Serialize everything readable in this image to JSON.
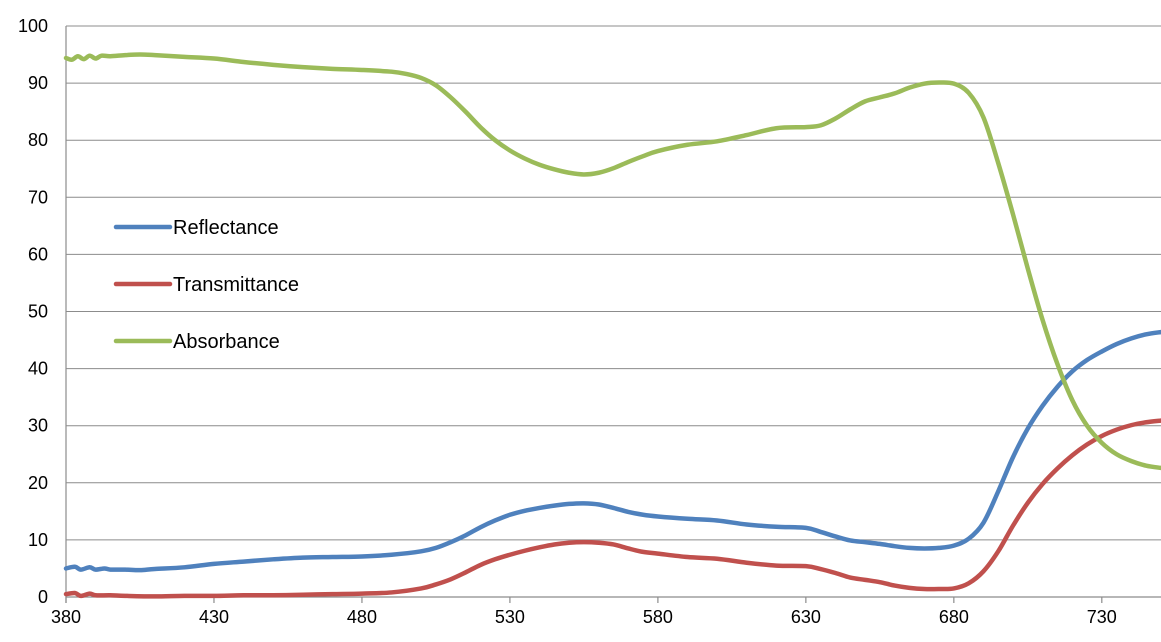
{
  "chart_data": {
    "type": "line",
    "title": "",
    "xlabel": "",
    "ylabel": "",
    "xlim": [
      380,
      750
    ],
    "ylim": [
      0,
      100
    ],
    "x_ticks": [
      380,
      430,
      480,
      530,
      580,
      630,
      680,
      730
    ],
    "y_ticks": [
      0,
      10,
      20,
      30,
      40,
      50,
      60,
      70,
      80,
      90,
      100
    ],
    "grid": true,
    "legend_position": "left",
    "series": [
      {
        "name": "Reflectance",
        "color": "#4f81bd",
        "x": [
          380,
          383,
          385,
          388,
          390,
          393,
          395,
          400,
          405,
          410,
          420,
          430,
          440,
          450,
          460,
          470,
          480,
          490,
          500,
          505,
          510,
          515,
          520,
          525,
          530,
          535,
          540,
          545,
          550,
          555,
          560,
          565,
          570,
          575,
          580,
          590,
          600,
          610,
          620,
          630,
          635,
          640,
          645,
          650,
          655,
          660,
          665,
          670,
          675,
          680,
          685,
          690,
          695,
          700,
          705,
          710,
          715,
          720,
          725,
          730,
          735,
          740,
          745,
          750
        ],
        "y": [
          5.0,
          5.3,
          4.8,
          5.2,
          4.8,
          5.0,
          4.8,
          4.8,
          4.7,
          4.9,
          5.2,
          5.8,
          6.2,
          6.6,
          6.9,
          7.0,
          7.1,
          7.4,
          8.0,
          8.6,
          9.6,
          10.8,
          12.2,
          13.4,
          14.4,
          15.1,
          15.6,
          16.0,
          16.3,
          16.4,
          16.2,
          15.6,
          14.9,
          14.4,
          14.1,
          13.7,
          13.4,
          12.7,
          12.3,
          12.1,
          11.4,
          10.6,
          9.9,
          9.6,
          9.3,
          8.9,
          8.6,
          8.5,
          8.6,
          9.0,
          10.2,
          13.0,
          18.5,
          24.5,
          29.5,
          33.5,
          36.8,
          39.5,
          41.5,
          43.0,
          44.3,
          45.3,
          46.0,
          46.4
        ]
      },
      {
        "name": "Transmittance",
        "color": "#c0504d",
        "x": [
          380,
          383,
          385,
          388,
          390,
          395,
          400,
          410,
          420,
          430,
          440,
          450,
          460,
          470,
          480,
          490,
          500,
          505,
          510,
          515,
          520,
          525,
          530,
          535,
          540,
          545,
          550,
          555,
          560,
          565,
          570,
          575,
          580,
          590,
          600,
          610,
          620,
          630,
          635,
          640,
          645,
          650,
          655,
          660,
          665,
          670,
          675,
          680,
          685,
          690,
          695,
          700,
          705,
          710,
          715,
          720,
          725,
          730,
          735,
          740,
          745,
          750
        ],
        "y": [
          0.5,
          0.7,
          0.2,
          0.6,
          0.3,
          0.3,
          0.2,
          0.1,
          0.2,
          0.2,
          0.3,
          0.3,
          0.4,
          0.5,
          0.6,
          0.8,
          1.5,
          2.2,
          3.1,
          4.3,
          5.6,
          6.6,
          7.4,
          8.1,
          8.7,
          9.2,
          9.5,
          9.6,
          9.5,
          9.2,
          8.5,
          7.9,
          7.6,
          7.0,
          6.7,
          6.0,
          5.5,
          5.4,
          4.9,
          4.2,
          3.4,
          3.0,
          2.6,
          2.0,
          1.6,
          1.4,
          1.4,
          1.5,
          2.4,
          4.5,
          8.0,
          12.5,
          16.5,
          19.8,
          22.5,
          24.8,
          26.7,
          28.2,
          29.3,
          30.1,
          30.6,
          30.9
        ]
      },
      {
        "name": "Absorbance",
        "color": "#9bbb59",
        "x": [
          380,
          382,
          384,
          386,
          388,
          390,
          392,
          395,
          400,
          405,
          410,
          420,
          430,
          440,
          450,
          460,
          470,
          480,
          490,
          495,
          500,
          505,
          510,
          515,
          520,
          525,
          530,
          535,
          540,
          545,
          550,
          555,
          560,
          565,
          570,
          575,
          580,
          590,
          600,
          610,
          620,
          630,
          635,
          640,
          645,
          650,
          655,
          660,
          665,
          670,
          675,
          680,
          685,
          690,
          695,
          700,
          705,
          710,
          715,
          720,
          725,
          730,
          735,
          740,
          745,
          750
        ],
        "y": [
          94.4,
          94.1,
          94.7,
          94.2,
          94.8,
          94.3,
          94.8,
          94.7,
          94.9,
          95.0,
          94.9,
          94.6,
          94.3,
          93.7,
          93.2,
          92.8,
          92.5,
          92.3,
          92.0,
          91.6,
          90.9,
          89.6,
          87.5,
          85.0,
          82.3,
          80.0,
          78.2,
          76.8,
          75.7,
          74.9,
          74.3,
          74.0,
          74.3,
          75.1,
          76.2,
          77.2,
          78.1,
          79.2,
          79.8,
          80.9,
          82.1,
          82.3,
          82.6,
          83.8,
          85.4,
          86.8,
          87.5,
          88.2,
          89.2,
          89.9,
          90.1,
          89.9,
          88.3,
          84.0,
          76.0,
          67.0,
          57.5,
          48.5,
          40.8,
          34.5,
          30.0,
          27.0,
          25.0,
          23.8,
          23.0,
          22.6
        ]
      }
    ]
  }
}
